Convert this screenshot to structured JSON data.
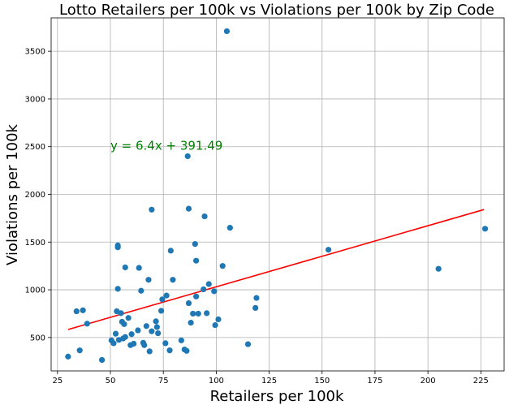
{
  "chart_data": {
    "type": "scatter",
    "title": "Lotto Retailers per 100k vs Violations per 100k by Zip Code",
    "xlabel": "Retailers per 100k",
    "ylabel": "Violations per 100k",
    "xlim": [
      22,
      236
    ],
    "ylim": [
      150,
      3850
    ],
    "xticks": [
      25,
      50,
      75,
      100,
      125,
      150,
      175,
      200,
      225
    ],
    "yticks": [
      500,
      1000,
      1500,
      2000,
      2500,
      3000,
      3500
    ],
    "grid": true,
    "point_color": "#1f77b4",
    "line_color": "#ff0000",
    "regression": {
      "slope": 6.4,
      "intercept": 391.49,
      "x_range": [
        30,
        226.5
      ],
      "label": "y = 6.4x + 391.49",
      "label_color": "#008000",
      "label_at": [
        50,
        2510
      ]
    },
    "points": [
      [
        30,
        300
      ],
      [
        34,
        775
      ],
      [
        35.5,
        365
      ],
      [
        37,
        785
      ],
      [
        39,
        645
      ],
      [
        46,
        265
      ],
      [
        50.5,
        470
      ],
      [
        51.5,
        440
      ],
      [
        52.5,
        540
      ],
      [
        53,
        775
      ],
      [
        53.5,
        1010
      ],
      [
        53.5,
        1445
      ],
      [
        53.5,
        1465
      ],
      [
        54,
        475
      ],
      [
        55,
        755
      ],
      [
        55.5,
        665
      ],
      [
        56,
        490
      ],
      [
        56.5,
        640
      ],
      [
        57,
        505
      ],
      [
        57,
        1235
      ],
      [
        58.5,
        705
      ],
      [
        59.5,
        420
      ],
      [
        60,
        535
      ],
      [
        61,
        435
      ],
      [
        63,
        575
      ],
      [
        63.5,
        1230
      ],
      [
        64.5,
        990
      ],
      [
        65.5,
        445
      ],
      [
        66,
        420
      ],
      [
        67,
        620
      ],
      [
        68,
        1105
      ],
      [
        68.5,
        355
      ],
      [
        69.5,
        565
      ],
      [
        69.5,
        1840
      ],
      [
        71.5,
        670
      ],
      [
        72,
        610
      ],
      [
        72.5,
        545
      ],
      [
        74,
        780
      ],
      [
        74.5,
        900
      ],
      [
        76,
        440
      ],
      [
        76.5,
        940
      ],
      [
        78,
        365
      ],
      [
        78.5,
        1410
      ],
      [
        79.5,
        1105
      ],
      [
        83.5,
        470
      ],
      [
        85,
        375
      ],
      [
        86,
        360
      ],
      [
        86.5,
        2400
      ],
      [
        87,
        860
      ],
      [
        87,
        1850
      ],
      [
        88,
        655
      ],
      [
        89,
        750
      ],
      [
        90,
        1480
      ],
      [
        90.5,
        1305
      ],
      [
        90.5,
        930
      ],
      [
        91.5,
        750
      ],
      [
        94,
        1005
      ],
      [
        94.5,
        1770
      ],
      [
        95.5,
        755
      ],
      [
        96.5,
        1060
      ],
      [
        99,
        985
      ],
      [
        99.5,
        630
      ],
      [
        101,
        690
      ],
      [
        103,
        1250
      ],
      [
        105,
        3710
      ],
      [
        106.5,
        1650
      ],
      [
        115,
        430
      ],
      [
        118.5,
        810
      ],
      [
        119,
        915
      ],
      [
        153,
        1420
      ],
      [
        205,
        1220
      ],
      [
        227,
        1640
      ]
    ]
  }
}
